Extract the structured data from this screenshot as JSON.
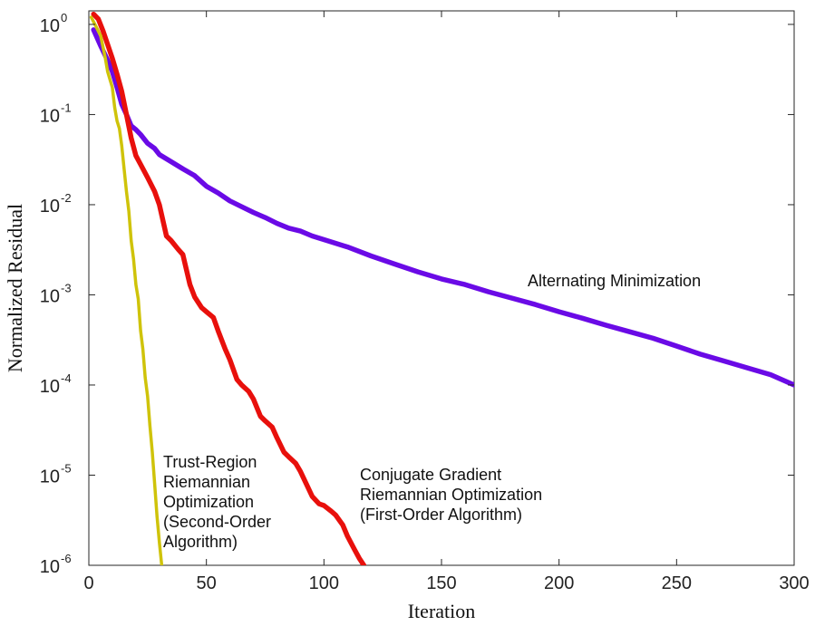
{
  "chart_data": {
    "type": "line",
    "xlabel": "Iteration",
    "ylabel": "Normalized Residual",
    "yscale": "log",
    "xlim": [
      0,
      300
    ],
    "ylim_log10": [
      -6,
      0.15
    ],
    "x_ticks": [
      0,
      50,
      100,
      150,
      200,
      250,
      300
    ],
    "y_ticks": [
      {
        "base": "10",
        "exp": "0",
        "value": 1
      },
      {
        "base": "10",
        "exp": "-1",
        "value": 0.1
      },
      {
        "base": "10",
        "exp": "-2",
        "value": 0.01
      },
      {
        "base": "10",
        "exp": "-3",
        "value": 0.001
      },
      {
        "base": "10",
        "exp": "-4",
        "value": 0.0001
      },
      {
        "base": "10",
        "exp": "-5",
        "value": 1e-05
      },
      {
        "base": "10",
        "exp": "-6",
        "value": 1e-06
      }
    ],
    "series": [
      {
        "name": "Alternating Minimization",
        "color": "#6a0ae6",
        "x": [
          2,
          5,
          8,
          10,
          12,
          14,
          16,
          18,
          20,
          22,
          25,
          28,
          30,
          35,
          40,
          45,
          50,
          55,
          60,
          65,
          70,
          75,
          80,
          85,
          90,
          95,
          100,
          110,
          120,
          130,
          140,
          150,
          160,
          170,
          180,
          190,
          200,
          210,
          220,
          230,
          240,
          250,
          260,
          270,
          280,
          290,
          300
        ],
        "values": [
          0.87,
          0.58,
          0.4,
          0.3,
          0.2,
          0.13,
          0.1,
          0.075,
          0.068,
          0.06,
          0.048,
          0.042,
          0.036,
          0.03,
          0.025,
          0.021,
          0.016,
          0.0135,
          0.011,
          0.0095,
          0.0082,
          0.0072,
          0.0062,
          0.0055,
          0.0051,
          0.0045,
          0.0041,
          0.0034,
          0.0027,
          0.0022,
          0.0018,
          0.0015,
          0.0013,
          0.00108,
          0.00092,
          0.00078,
          0.00065,
          0.00055,
          0.00046,
          0.00039,
          0.00033,
          0.00027,
          0.00022,
          0.000185,
          0.000155,
          0.00013,
          0.0001
        ]
      },
      {
        "name": "Conjugate Gradient Riemannian Optimization (First-Order Algorithm)",
        "color": "#e8100c",
        "x": [
          2,
          4,
          6,
          8,
          10,
          12,
          14,
          16,
          18,
          20,
          22,
          25,
          28,
          30,
          33,
          35,
          38,
          40,
          43,
          45,
          48,
          50,
          53,
          55,
          58,
          60,
          63,
          65,
          68,
          70,
          73,
          75,
          78,
          80,
          83,
          85,
          88,
          90,
          93,
          95,
          98,
          100,
          103,
          105,
          108,
          110,
          113,
          115,
          117
        ],
        "values": [
          1.3,
          1.15,
          0.85,
          0.6,
          0.42,
          0.28,
          0.18,
          0.1,
          0.055,
          0.035,
          0.028,
          0.02,
          0.014,
          0.01,
          0.0045,
          0.004,
          0.0032,
          0.0028,
          0.0013,
          0.00095,
          0.00072,
          0.00065,
          0.00056,
          0.0004,
          0.00025,
          0.00019,
          0.000115,
          0.0001,
          8.5e-05,
          7e-05,
          4.5e-05,
          4e-05,
          3.4e-05,
          2.6e-05,
          1.8e-05,
          1.6e-05,
          1.35e-05,
          1.1e-05,
          7.5e-06,
          5.8e-06,
          4.8e-06,
          4.6e-06,
          4e-06,
          3.6e-06,
          2.8e-06,
          2.1e-06,
          1.5e-06,
          1.2e-06,
          1e-06
        ]
      },
      {
        "name": "Trust-Region Riemannian Optimization (Second-Order Algorithm)",
        "color": "#cfc30a",
        "x": [
          1,
          3,
          5,
          7,
          8,
          10,
          11,
          12,
          13,
          14,
          15,
          16,
          17,
          18,
          19,
          20,
          21,
          22,
          23,
          24,
          25,
          26,
          27,
          28,
          29,
          30,
          31
        ],
        "values": [
          1.2,
          0.95,
          0.75,
          0.42,
          0.3,
          0.2,
          0.12,
          0.085,
          0.07,
          0.045,
          0.025,
          0.014,
          0.0085,
          0.004,
          0.0025,
          0.0013,
          0.0009,
          0.0004,
          0.00025,
          0.00012,
          7.5e-05,
          3.5e-05,
          1.8e-05,
          8e-06,
          3.5e-06,
          1.8e-06,
          1e-06
        ]
      }
    ],
    "annotations": [
      {
        "series": 0,
        "lines": [
          "Alternating Minimization"
        ]
      },
      {
        "series": 1,
        "lines": [
          "Conjugate Gradient",
          "Riemannian Optimization",
          "(First-Order Algorithm)"
        ]
      },
      {
        "series": 2,
        "lines": [
          "Trust-Region",
          "Riemannian",
          "Optimization",
          "(Second-Order",
          "Algorithm)"
        ]
      }
    ]
  }
}
